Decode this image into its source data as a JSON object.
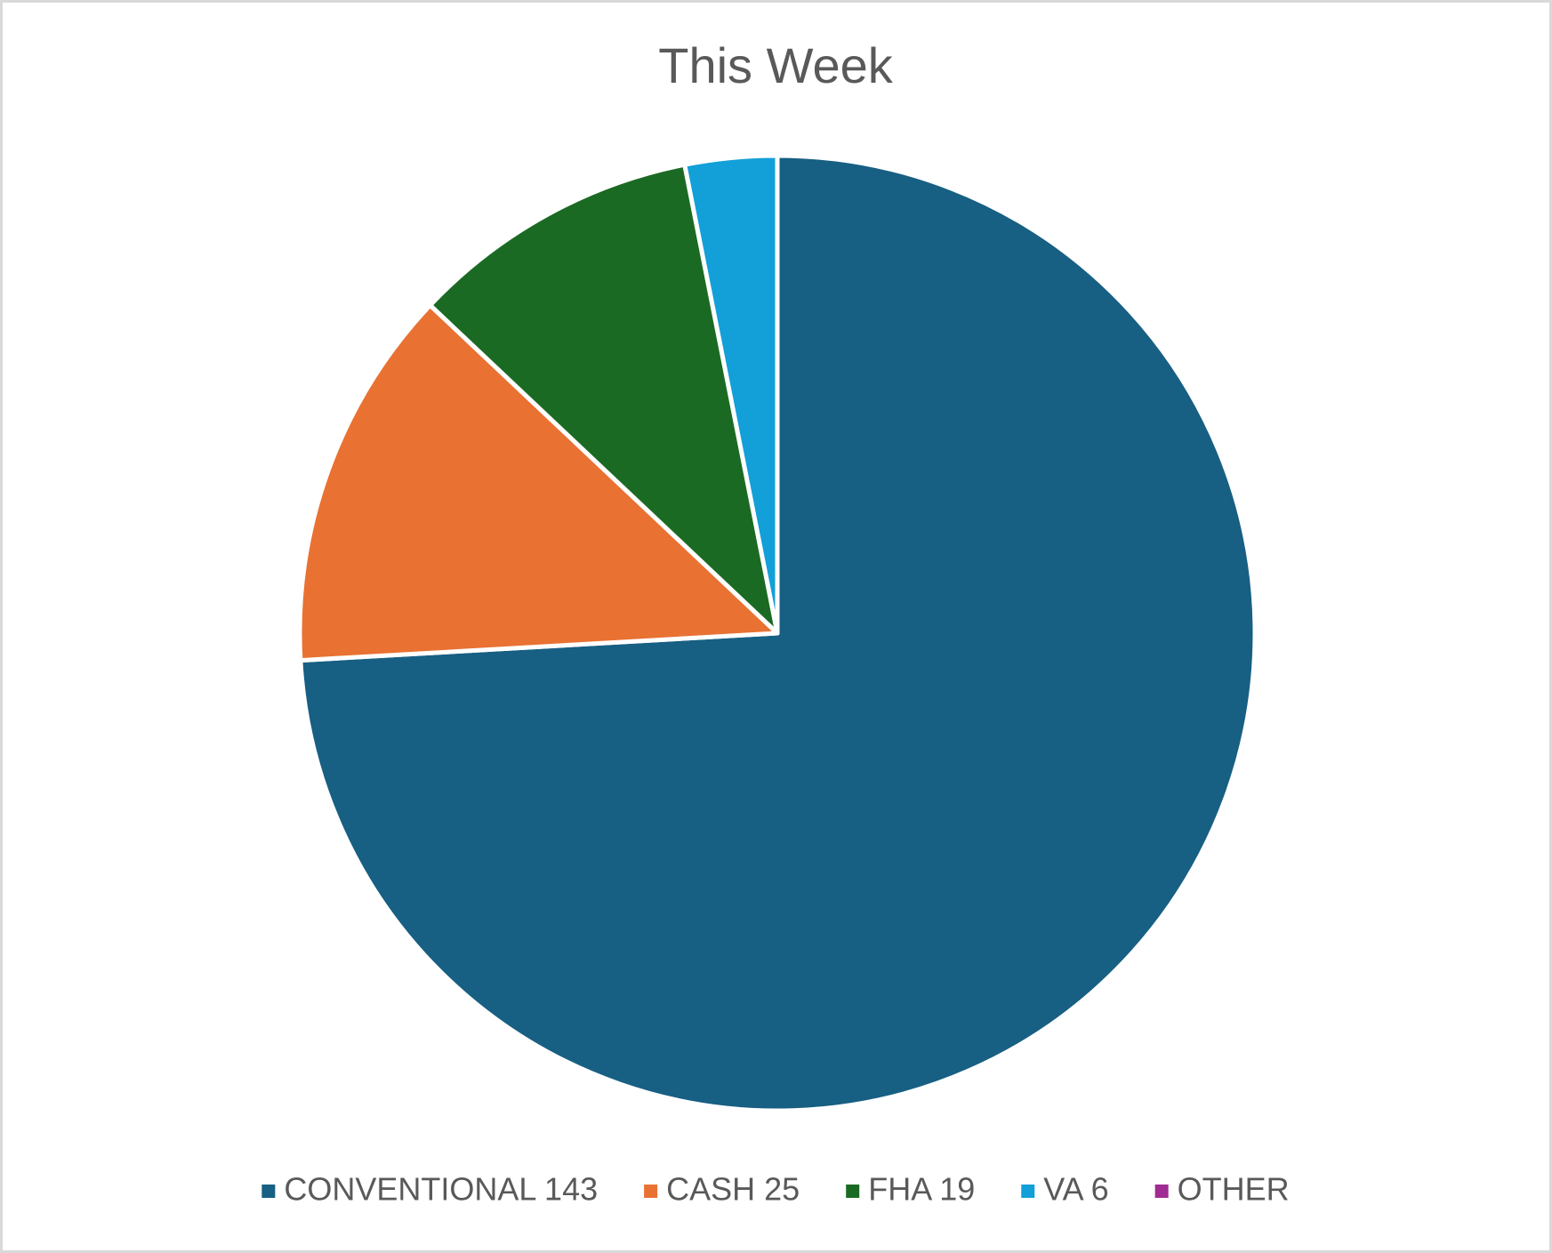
{
  "chart_data": {
    "type": "pie",
    "title": "This Week",
    "categories": [
      "CONVENTIONAL 143",
      "CASH 25",
      "FHA 19",
      "VA 6",
      "OTHER"
    ],
    "values": [
      143,
      25,
      19,
      6,
      0
    ],
    "colors": [
      "#175f83",
      "#e97132",
      "#1b6a24",
      "#139fd8",
      "#a02b93"
    ],
    "legend": "bottom"
  }
}
